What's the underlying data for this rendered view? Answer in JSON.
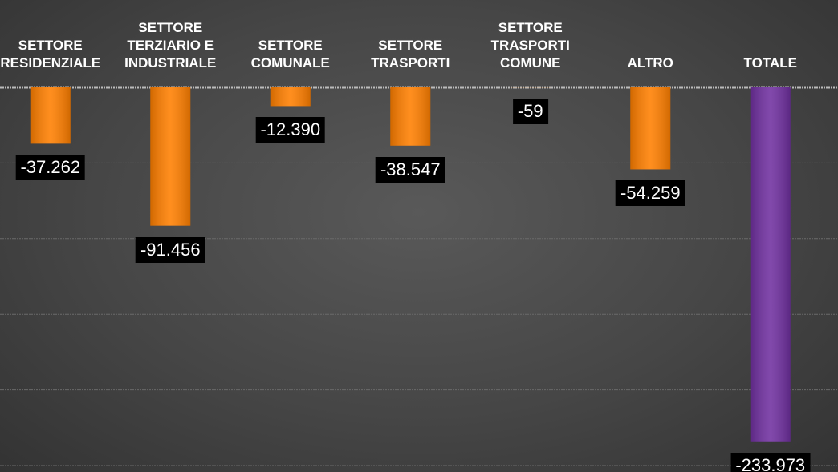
{
  "chart_data": {
    "type": "bar",
    "categories": [
      "SETTORE\nRESIDENZIALE",
      "SETTORE\nTERZIARIO E\nINDUSTRIALE",
      "SETTORE\nCOMUNALE",
      "SETTORE\nTRASPORTI",
      "SETTORE\nTRASPORTI\nCOMUNE",
      "ALTRO",
      "TOTALE"
    ],
    "values": [
      -37262,
      -91456,
      -12390,
      -38547,
      -59,
      -54259,
      -233973
    ],
    "value_labels": [
      "-37.262",
      "-91.456",
      "-12.390",
      "-38.547",
      "-59",
      "-54.259",
      "-233.973"
    ],
    "colors": [
      "#ff7f00",
      "#ff7f00",
      "#ff7f00",
      "#ff7f00",
      "#ff7f00",
      "#ff7f00",
      "#7030a0"
    ],
    "ylim": [
      -250000,
      0
    ],
    "yticks": [
      -250000,
      -200000,
      -150000,
      -100000,
      -50000,
      0
    ],
    "grid": true
  }
}
